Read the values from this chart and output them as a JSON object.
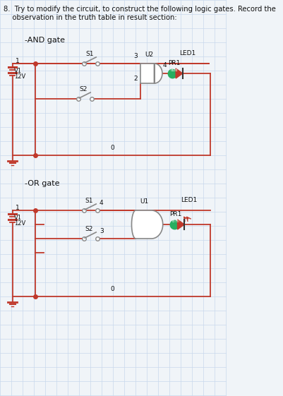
{
  "bg_color": "#f0f4f8",
  "grid_color": "#c8d8ec",
  "wire_color": "#c0392b",
  "switch_color": "#888888",
  "text_color": "#111111",
  "green_color": "#27ae60",
  "title_line1": "8.  Try to modify the circuit, to construct the following logic gates. Record the",
  "title_line2": "    observation in the truth table in result section:",
  "and_label": "-AND gate",
  "or_label": "-OR gate"
}
